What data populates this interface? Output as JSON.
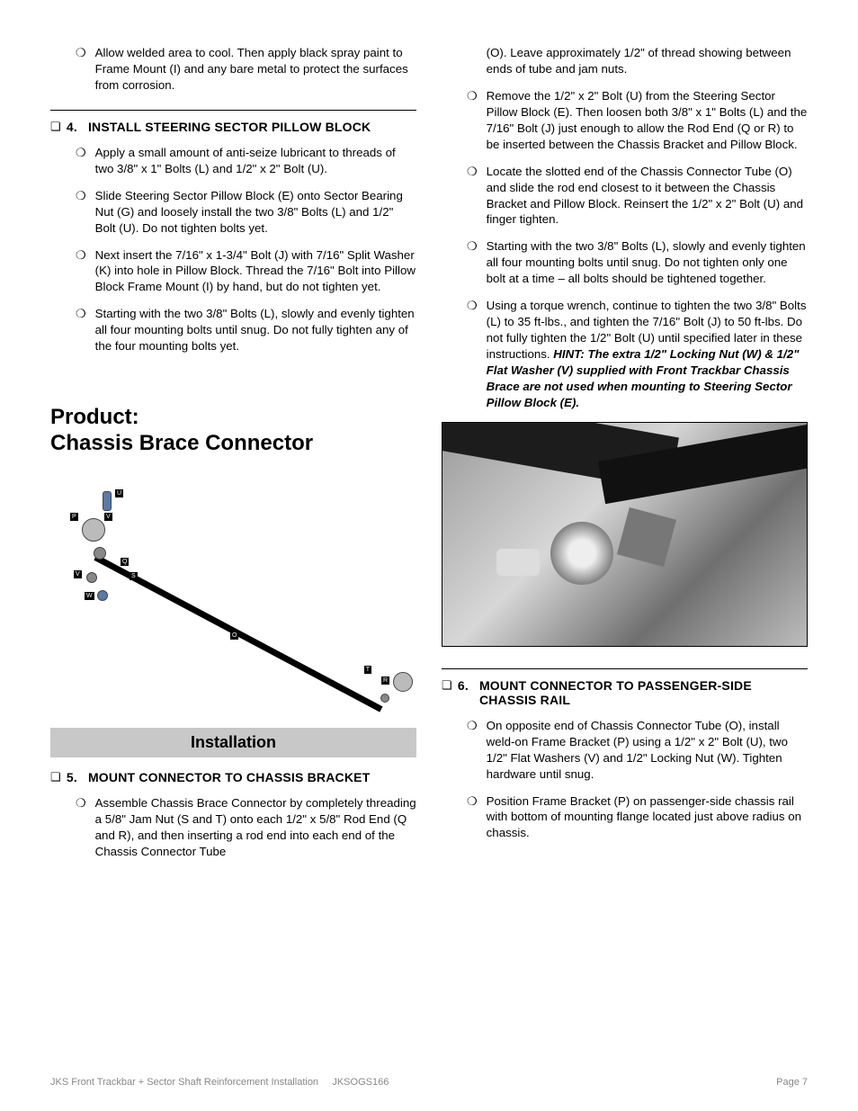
{
  "left": {
    "intro_bullet": "Allow welded area to cool. Then apply black spray paint to Frame Mount (I) and any bare metal to protect the surfaces from corrosion.",
    "step4": {
      "num": "4.",
      "title": "INSTALL STEERING SECTOR PILLOW BLOCK",
      "bullets": [
        "Apply a small amount of anti-seize lubricant to threads of two 3/8\" x 1\" Bolts (L) and 1/2\" x 2\" Bolt (U).",
        "Slide Steering Sector Pillow Block (E) onto Sector Bearing Nut (G) and loosely install the two 3/8\" Bolts (L) and 1/2\" Bolt (U). Do not tighten bolts yet.",
        "Next insert the 7/16\" x 1-3/4\" Bolt (J) with 7/16\" Split Washer (K) into hole in Pillow Block. Thread the 7/16\" Bolt into Pillow Block Frame Mount (I) by hand, but do not tighten yet.",
        "Starting with the two 3/8\" Bolts (L), slowly and evenly tighten all four mounting bolts until snug. Do not fully tighten any of the four mounting bolts yet."
      ]
    },
    "product_heading_l1": "Product:",
    "product_heading_l2": "Chassis Brace Connector",
    "diagram_labels": [
      "U",
      "P",
      "V",
      "V",
      "W",
      "Q",
      "S",
      "O",
      "T",
      "R"
    ],
    "install_bar": "Installation",
    "step5": {
      "num": "5.",
      "title": "MOUNT CONNECTOR TO CHASSIS BRACKET",
      "bullets": [
        "Assemble Chassis Brace Connector by completely threading a 5/8\" Jam Nut (S and T) onto each 1/2\" x 5/8\" Rod End (Q and R), and then inserting a rod end into each end of the Chassis Connector Tube"
      ]
    }
  },
  "right": {
    "cont_bullets": [
      "(O). Leave approximately 1/2\" of thread showing between ends of tube and jam nuts.",
      "Remove the 1/2\" x 2\" Bolt (U) from the Steering Sector Pillow Block (E). Then loosen both 3/8\" x 1\" Bolts (L) and the 7/16\" Bolt (J) just enough to allow the Rod End (Q or R) to be inserted between the Chassis Bracket and Pillow Block.",
      "Locate the slotted end of the Chassis Connector Tube (O) and slide the rod end closest to it between the Chassis Bracket and Pillow Block. Reinsert the 1/2\" x 2\" Bolt (U) and finger tighten.",
      "Starting with the two 3/8\" Bolts (L), slowly and evenly tighten all four mounting bolts until snug. Do not tighten only one bolt at a time – all bolts should be tightened together."
    ],
    "last_bullet_pre": "Using a torque wrench, continue to tighten the two 3/8\" Bolts (L) to 35 ft-lbs., and tighten the 7/16\" Bolt (J) to 50 ft-lbs. Do not fully tighten the 1/2\" Bolt (U) until specified later in these instructions. ",
    "last_bullet_hint": "HINT: The extra 1/2\" Locking Nut (W) & 1/2\" Flat Washer (V) supplied with Front Trackbar Chassis Brace are not used when mounting to Steering Sector Pillow Block (E).",
    "step6": {
      "num": "6.",
      "title": "MOUNT CONNECTOR TO PASSENGER-SIDE CHASSIS RAIL",
      "bullets": [
        "On opposite end of Chassis Connector Tube (O), install weld-on Frame Bracket (P) using a 1/2\" x 2\" Bolt (U), two 1/2\" Flat Washers (V) and 1/2\" Locking Nut (W). Tighten hardware until snug.",
        "Position Frame Bracket (P) on passenger-side chassis rail with bottom of mounting flange located just above radius on chassis."
      ]
    }
  },
  "footer": {
    "left": "JKS Front Trackbar + Sector Shaft Reinforcement Installation",
    "center": "JKSOGS166",
    "right": "Page 7"
  },
  "colors": {
    "text": "#000000",
    "footer": "#888888",
    "install_bar_bg": "#c8c8c8"
  }
}
